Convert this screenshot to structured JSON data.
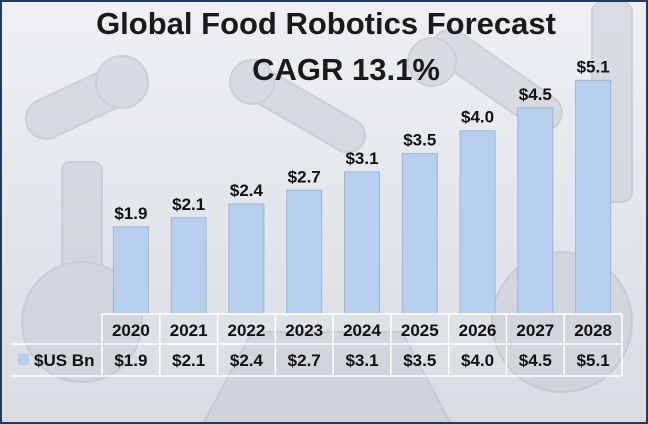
{
  "title": "Global Food Robotics Forecast",
  "subtitle": "CAGR 13.1%",
  "chart_data": {
    "type": "bar",
    "categories": [
      "2020",
      "2021",
      "2022",
      "2023",
      "2024",
      "2025",
      "2026",
      "2027",
      "2028"
    ],
    "series": [
      {
        "name": "$US Bn",
        "values": [
          1.9,
          2.1,
          2.4,
          2.7,
          3.1,
          3.5,
          4.0,
          4.5,
          5.1
        ]
      }
    ],
    "data_labels": [
      "$1.9",
      "$2.1",
      "$2.4",
      "$2.7",
      "$3.1",
      "$3.5",
      "$4.0",
      "$4.5",
      "$5.1"
    ],
    "table_row_label": "$US Bn",
    "table_values": [
      "$1.9",
      "$2.1",
      "$2.4",
      "$2.7",
      "$3.1",
      "$3.5",
      "$4.0",
      "$4.5",
      "$5.1"
    ],
    "ylim": [
      0,
      5.5
    ],
    "colors": {
      "bar": "#b8d0ee",
      "bar_border": "#9ab6dc",
      "frame": "#1f3b5e"
    },
    "legend": "data-table",
    "grid": false
  }
}
